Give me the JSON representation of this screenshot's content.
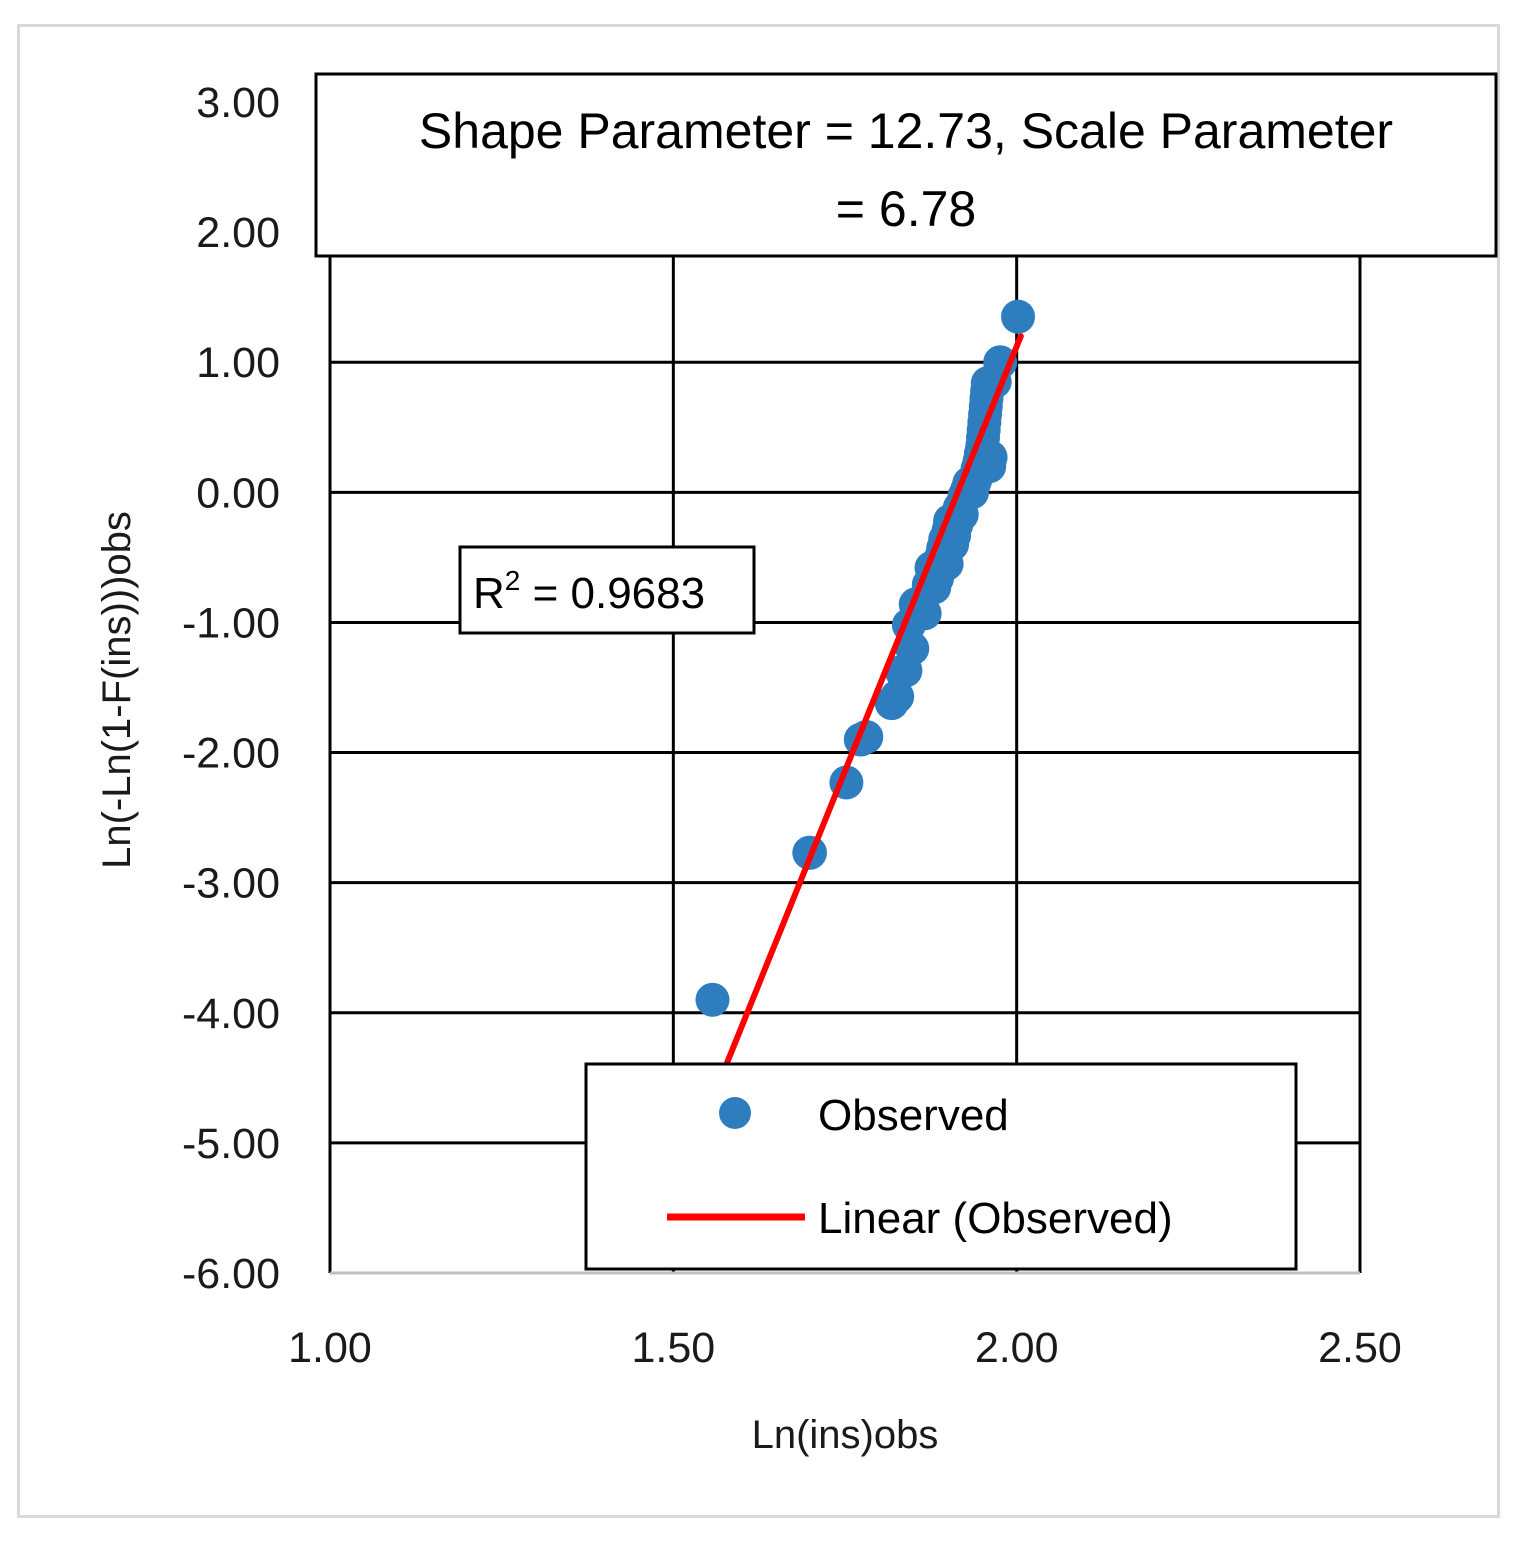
{
  "chart_data": {
    "type": "scatter",
    "title": "Shape Parameter = 12.73, Scale Parameter = 6.78",
    "title_lines": [
      "Shape Parameter = 12.73, Scale Parameter",
      "= 6.78"
    ],
    "xlabel": "Ln(ins)obs",
    "ylabel": "Ln(-Ln(1-F(ins)))obs",
    "xlim": [
      1.0,
      2.5
    ],
    "ylim": [
      -6.0,
      3.0
    ],
    "x_ticks": [
      "1.00",
      "1.50",
      "2.00",
      "2.50"
    ],
    "y_ticks": [
      "3.00",
      "2.00",
      "1.00",
      "0.00",
      "-1.00",
      "-2.00",
      "-3.00",
      "-4.00",
      "-5.00",
      "-6.00"
    ],
    "grid": true,
    "legend_position": "bottom-right",
    "r_squared_label": {
      "base": "R",
      "sup": "2",
      "rest": " = 0.9683"
    },
    "series": [
      {
        "name": "Observed",
        "kind": "scatter",
        "color": "#2e7ebf",
        "x": [
          1.557,
          1.698,
          1.699,
          1.752,
          1.773,
          1.781,
          1.818,
          1.826,
          1.833,
          1.838,
          1.843,
          1.848,
          1.853,
          1.858,
          1.866,
          1.872,
          1.876,
          1.88,
          1.884,
          1.887,
          1.89,
          1.893,
          1.896,
          1.898,
          1.901,
          1.903,
          1.906,
          1.909,
          1.912,
          1.915,
          1.917,
          1.92,
          1.924,
          1.928,
          1.931,
          1.935,
          1.938,
          1.94,
          1.943,
          1.946,
          1.948,
          1.95,
          1.951,
          1.952,
          1.953,
          1.954,
          1.955,
          1.956,
          1.957,
          1.958,
          1.96,
          1.962,
          1.968,
          1.976,
          2.002
        ],
        "y": [
          -3.9,
          -2.77,
          -2.77,
          -2.23,
          -1.9,
          -1.88,
          -1.62,
          -1.57,
          -1.38,
          -1.37,
          -1.02,
          -1.2,
          -0.86,
          -0.85,
          -0.93,
          -0.71,
          -0.58,
          -0.73,
          -0.66,
          -0.57,
          -0.5,
          -0.43,
          -0.36,
          -0.55,
          -0.29,
          -0.22,
          -0.4,
          -0.33,
          -0.25,
          -0.19,
          -0.12,
          -0.17,
          -0.03,
          0.02,
          0.07,
          0.0,
          0.07,
          0.1,
          0.18,
          0.24,
          0.3,
          0.36,
          0.42,
          0.48,
          0.54,
          0.6,
          0.66,
          0.72,
          0.78,
          0.84,
          0.2,
          0.27,
          0.85,
          1.0,
          1.35
        ]
      },
      {
        "name": "Linear (Observed)",
        "kind": "line",
        "color": "#ff0000",
        "x": [
          1.577,
          2.006
        ],
        "y": [
          -4.4,
          1.2
        ]
      }
    ]
  }
}
